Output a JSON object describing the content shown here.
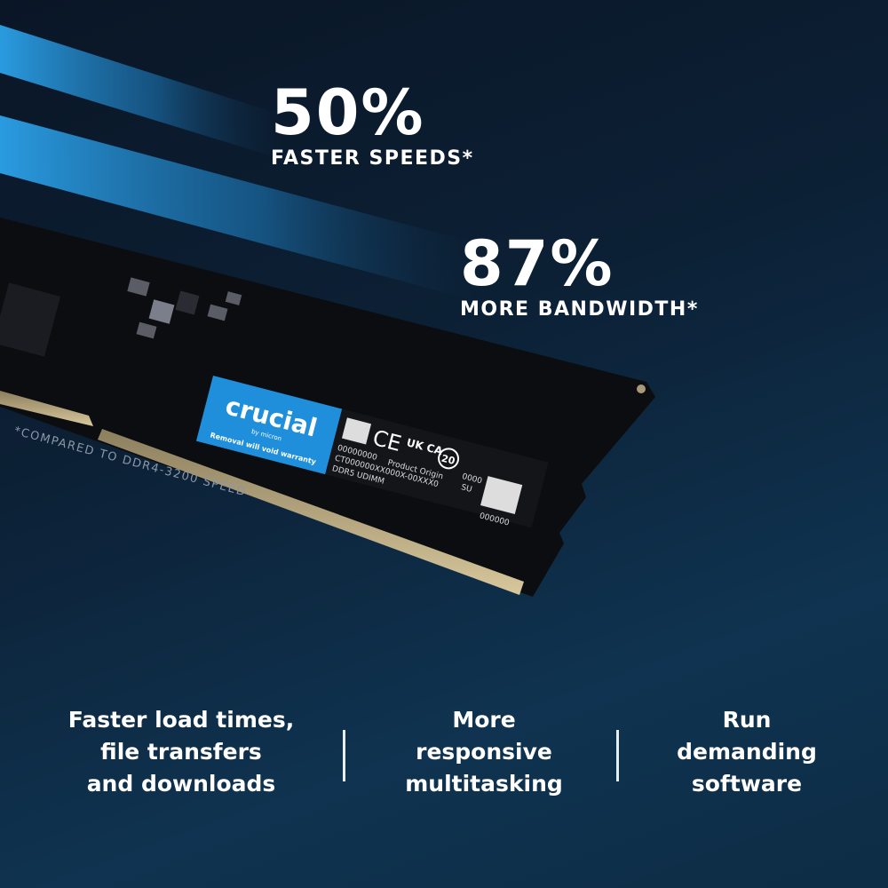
{
  "stats": [
    {
      "value": "50%",
      "label": "FASTER SPEEDS*"
    },
    {
      "value": "87%",
      "label": "MORE BANDWIDTH*"
    }
  ],
  "footnote": "*COMPARED TO DDR4-3200 SPEED",
  "product_label": {
    "brand": "crucial",
    "sub_brand": "by micron",
    "warranty": "Removal will void warranty",
    "serial": "00000000",
    "part_number": "CT000000XX000X-00XXX0",
    "type": "DDR5 UDIMM",
    "origin": "Product Origin",
    "code1": "0000",
    "code2": "SU",
    "code3": "000000",
    "marks": [
      "CE",
      "UK CA",
      "20"
    ]
  },
  "features": [
    {
      "lines": [
        "Faster load times,",
        "file transfers",
        "and downloads"
      ]
    },
    {
      "lines": [
        "More",
        "responsive",
        "multitasking"
      ]
    },
    {
      "lines": [
        "Run",
        "demanding",
        "software"
      ]
    }
  ],
  "colors": {
    "background": "#0c2035",
    "stripe": "#2a9be0",
    "label_blue": "#1f8fdc",
    "pcb": "#0c0d10",
    "contacts": "#b9a77e"
  }
}
